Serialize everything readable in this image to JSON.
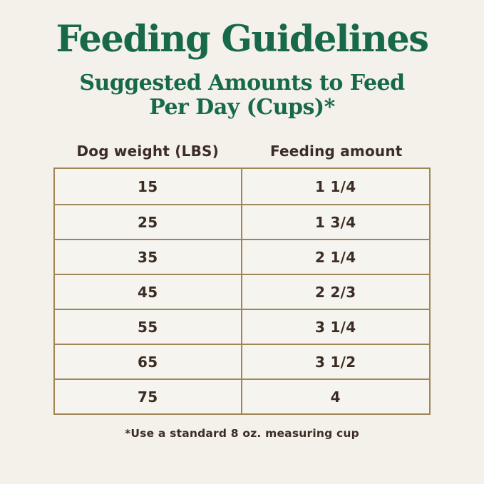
{
  "page": {
    "title": "Feeding Guidelines",
    "subtitle_line1": "Suggested Amounts to Feed",
    "subtitle_line2": "Per Day (Cups)*",
    "footnote": "*Use a standard 8 oz. measuring cup"
  },
  "table": {
    "columns": [
      "Dog weight (LBS)",
      "Feeding amount"
    ],
    "rows": [
      [
        "15",
        "1 1/4"
      ],
      [
        "25",
        "1 3/4"
      ],
      [
        "35",
        "2 1/4"
      ],
      [
        "45",
        "2 2/3"
      ],
      [
        "55",
        "3 1/4"
      ],
      [
        "65",
        "3 1/2"
      ],
      [
        "75",
        "4"
      ]
    ]
  },
  "colors": {
    "background": "#F3F1EA",
    "heading_green": "#176949",
    "text_dark": "#3B2C24",
    "table_border": "#9F8659",
    "cell_background": "#F6F4EE"
  },
  "chart_data": {
    "type": "table",
    "title": "Feeding Guidelines",
    "subtitle": "Suggested Amounts to Feed Per Day (Cups)*",
    "columns": [
      "Dog weight (LBS)",
      "Feeding amount"
    ],
    "rows": [
      {
        "dog_weight_lbs": 15,
        "feeding_amount_cups": "1 1/4"
      },
      {
        "dog_weight_lbs": 25,
        "feeding_amount_cups": "1 3/4"
      },
      {
        "dog_weight_lbs": 35,
        "feeding_amount_cups": "2 1/4"
      },
      {
        "dog_weight_lbs": 45,
        "feeding_amount_cups": "2 2/3"
      },
      {
        "dog_weight_lbs": 55,
        "feeding_amount_cups": "3 1/4"
      },
      {
        "dog_weight_lbs": 65,
        "feeding_amount_cups": "3 1/2"
      },
      {
        "dog_weight_lbs": 75,
        "feeding_amount_cups": "4"
      }
    ],
    "footnote": "*Use a standard 8 oz. measuring cup"
  }
}
